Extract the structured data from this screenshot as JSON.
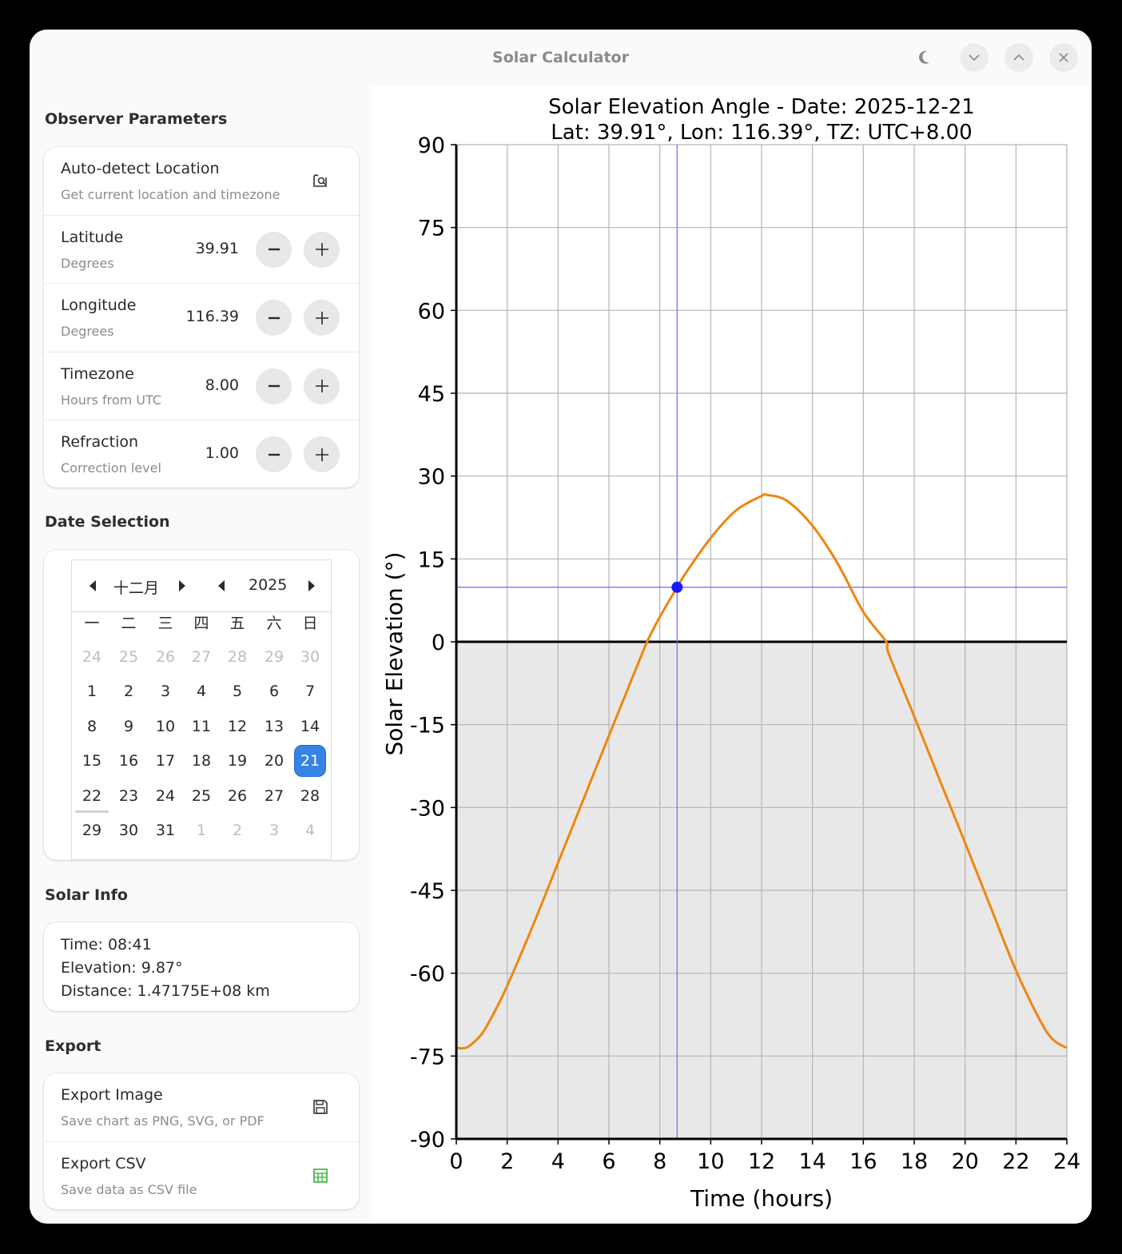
{
  "window": {
    "title": "Solar Calculator",
    "controls": {
      "theme_icon": "moon-icon",
      "minimize_icon": "chevron-down-icon",
      "maximize_icon": "chevron-up-icon",
      "close_icon": "close-icon"
    }
  },
  "sidebar": {
    "observer": {
      "section_title": "Observer Parameters",
      "auto_detect": {
        "title": "Auto-detect Location",
        "subtitle": "Get current location and timezone",
        "icon": "map-search-icon"
      },
      "params": [
        {
          "id": "latitude",
          "title": "Latitude",
          "subtitle": "Degrees",
          "value": "39.91"
        },
        {
          "id": "longitude",
          "title": "Longitude",
          "subtitle": "Degrees",
          "value": "116.39"
        },
        {
          "id": "timezone",
          "title": "Timezone",
          "subtitle": "Hours from UTC",
          "value": "8.00"
        },
        {
          "id": "refraction",
          "title": "Refraction",
          "subtitle": "Correction level",
          "value": "1.00"
        }
      ],
      "minus_label": "−",
      "plus_label": "+"
    },
    "date": {
      "section_title": "Date Selection",
      "calendar": {
        "month": "十二月",
        "year": "2025",
        "weekdays": [
          "一",
          "二",
          "三",
          "四",
          "五",
          "六",
          "日"
        ],
        "weeks": [
          [
            {
              "d": "24",
              "dim": true
            },
            {
              "d": "25",
              "dim": true
            },
            {
              "d": "26",
              "dim": true
            },
            {
              "d": "27",
              "dim": true
            },
            {
              "d": "28",
              "dim": true
            },
            {
              "d": "29",
              "dim": true
            },
            {
              "d": "30",
              "dim": true
            }
          ],
          [
            {
              "d": "1"
            },
            {
              "d": "2"
            },
            {
              "d": "3"
            },
            {
              "d": "4"
            },
            {
              "d": "5"
            },
            {
              "d": "6"
            },
            {
              "d": "7"
            }
          ],
          [
            {
              "d": "8"
            },
            {
              "d": "9"
            },
            {
              "d": "10"
            },
            {
              "d": "11"
            },
            {
              "d": "12"
            },
            {
              "d": "13"
            },
            {
              "d": "14"
            }
          ],
          [
            {
              "d": "15"
            },
            {
              "d": "16"
            },
            {
              "d": "17"
            },
            {
              "d": "18"
            },
            {
              "d": "19"
            },
            {
              "d": "20"
            },
            {
              "d": "21",
              "selected": true
            }
          ],
          [
            {
              "d": "22",
              "today": true
            },
            {
              "d": "23"
            },
            {
              "d": "24"
            },
            {
              "d": "25"
            },
            {
              "d": "26"
            },
            {
              "d": "27"
            },
            {
              "d": "28"
            }
          ],
          [
            {
              "d": "29"
            },
            {
              "d": "30"
            },
            {
              "d": "31"
            },
            {
              "d": "1",
              "dim": true
            },
            {
              "d": "2",
              "dim": true
            },
            {
              "d": "3",
              "dim": true
            },
            {
              "d": "4",
              "dim": true
            }
          ]
        ]
      }
    },
    "solar_info": {
      "section_title": "Solar Info",
      "lines": [
        "Time: 08:41",
        "Elevation: 9.87°",
        "Distance: 1.47175E+08 km"
      ]
    },
    "export": {
      "section_title": "Export",
      "items": [
        {
          "id": "export-image",
          "title": "Export Image",
          "subtitle": "Save chart as PNG, SVG, or PDF",
          "icon": "floppy-disk-icon"
        },
        {
          "id": "export-csv",
          "title": "Export CSV",
          "subtitle": "Save data as CSV file",
          "icon": "spreadsheet-icon"
        }
      ]
    }
  },
  "colors": {
    "accent": "#3584e4",
    "curve": "#f0850f",
    "marker": "#1a1aff",
    "crosshair": "#6a6aff",
    "below_horizon_fill": "#e8e8e8",
    "csv_icon": "#33b233"
  },
  "chart_data": {
    "type": "line",
    "title": "Solar Elevation Angle - Date: 2025-12-21",
    "subtitle": "Lat: 39.91°, Lon: 116.39°, TZ: UTC+8.00",
    "xlabel": "Time (hours)",
    "ylabel": "Solar Elevation (°)",
    "xlim": [
      0,
      24
    ],
    "ylim": [
      -90,
      90
    ],
    "xticks": [
      0,
      2,
      4,
      6,
      8,
      10,
      12,
      14,
      16,
      18,
      20,
      22,
      24
    ],
    "yticks": [
      90,
      75,
      60,
      45,
      30,
      15,
      0,
      -15,
      -30,
      -45,
      -60,
      -75,
      -90
    ],
    "grid": true,
    "legend": null,
    "horizon_line": 0,
    "shade_below_horizon": true,
    "series": [
      {
        "name": "Solar Elevation",
        "x": [
          0,
          0.25,
          0.5,
          1,
          1.5,
          2,
          3,
          4,
          5,
          6,
          7,
          7.5,
          8,
          8.68,
          9,
          10,
          11,
          12,
          12.2,
          13,
          14,
          15,
          16,
          16.9,
          17,
          18,
          19,
          20,
          21,
          22,
          23,
          23.5,
          24
        ],
        "y": [
          -73.5,
          -73.6,
          -73.2,
          -71.0,
          -67.0,
          -62.3,
          -51.5,
          -40.0,
          -28.5,
          -17.0,
          -5.6,
          0.0,
          4.5,
          9.87,
          12.3,
          18.8,
          23.8,
          26.4,
          26.6,
          25.5,
          21.0,
          14.1,
          5.4,
          0.0,
          -2.2,
          -13.5,
          -25.0,
          -36.4,
          -48.0,
          -59.5,
          -69.0,
          -72.2,
          -73.5
        ]
      }
    ],
    "cursor": {
      "time": "08:41",
      "x": 8.68,
      "y": 9.87
    }
  }
}
